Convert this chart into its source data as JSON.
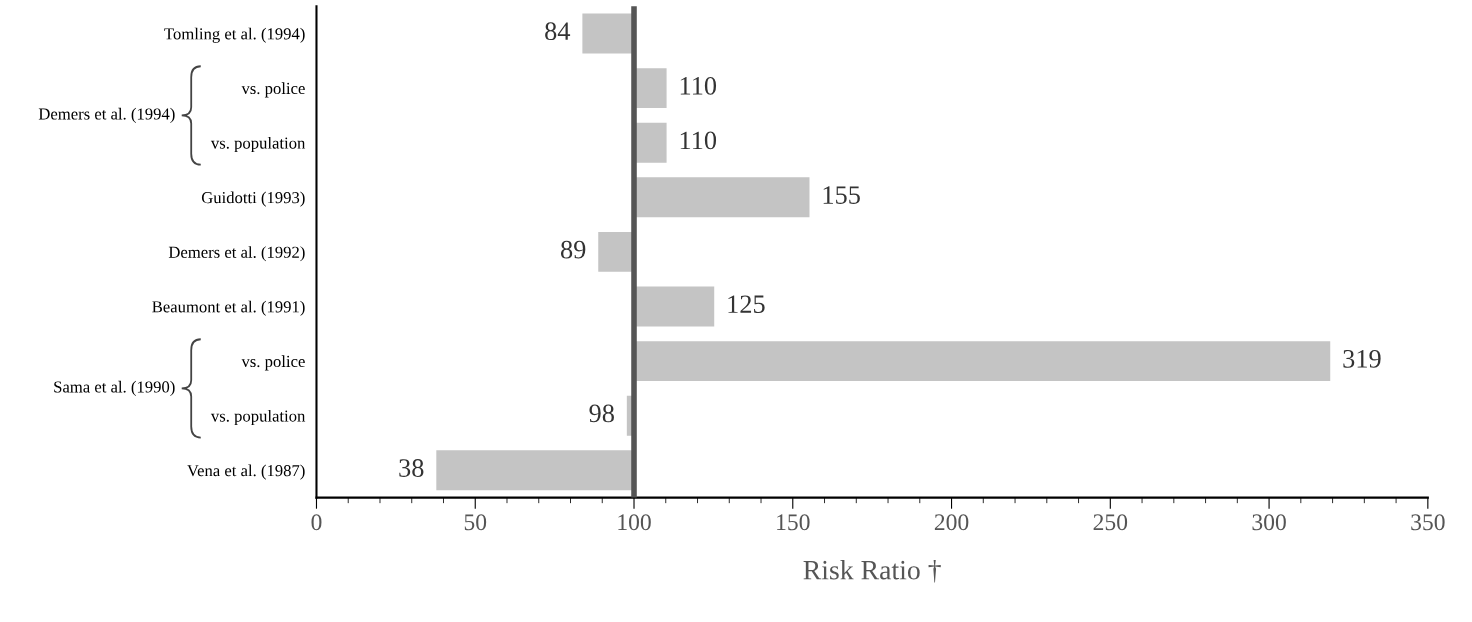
{
  "chart_data": {
    "type": "bar",
    "orientation": "horizontal",
    "xlabel": "Risk Ratio †",
    "categories": [
      "Tomling et al. (1994)",
      "vs. police",
      "vs. population",
      "Guidotti (1993)",
      "Demers et al. (1992)",
      "Beaumont et al. (1991)",
      "vs. police",
      "vs. population",
      "Vena et al. (1987)"
    ],
    "base": [
      100,
      100,
      100,
      100,
      100,
      100,
      100,
      100,
      100
    ],
    "values": [
      -16,
      10,
      10,
      55,
      -11,
      25,
      219,
      -2,
      -62
    ],
    "value_labels": [
      "84",
      "110",
      "110",
      "155",
      "89",
      "125",
      "319",
      "98",
      "38"
    ],
    "color": "#c4c4c4",
    "xlim": [
      0,
      350
    ],
    "xticks": [
      0,
      50,
      100,
      150,
      200,
      250,
      300,
      350
    ],
    "ref_lines": [
      {
        "axis": "x",
        "value": 100,
        "color": "#555555"
      }
    ],
    "annotations": [
      "Demers et al. (1994)",
      "Sama et al. (1990)"
    ],
    "grid": false
  }
}
